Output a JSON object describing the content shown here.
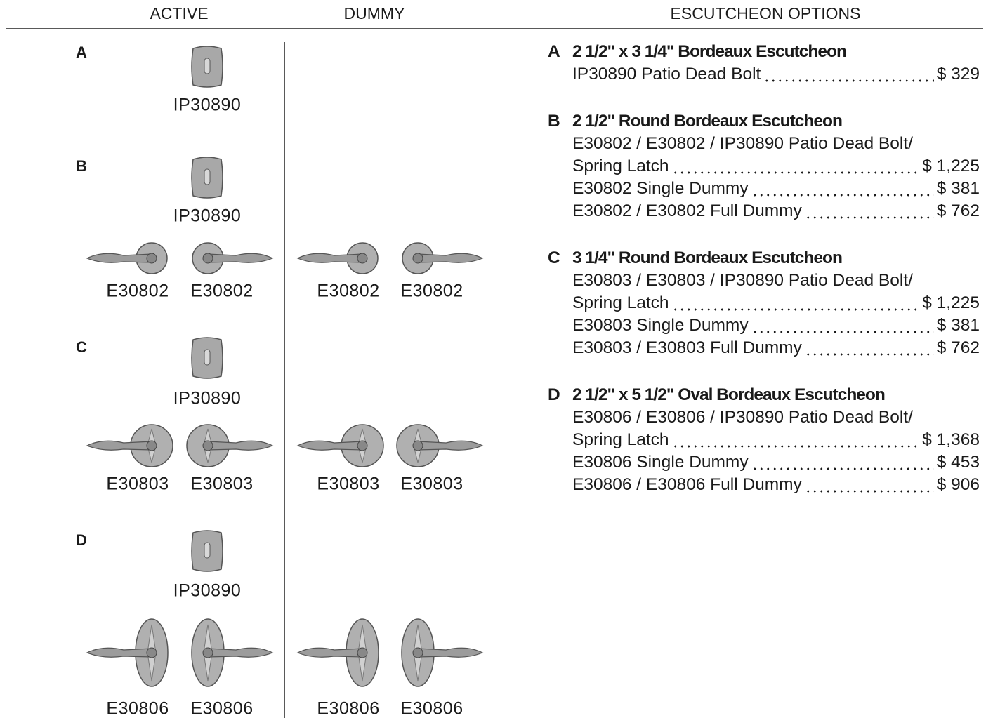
{
  "headers": {
    "active": "ACTIVE",
    "dummy": "DUMMY",
    "options": "ESCUTCHEON OPTIONS"
  },
  "sections": [
    {
      "letter": "A",
      "deadbolt": "IP30890",
      "active": [],
      "dummy": []
    },
    {
      "letter": "B",
      "deadbolt": "IP30890",
      "active": [
        "E30802",
        "E30802"
      ],
      "dummy": [
        "E30802",
        "E30802"
      ]
    },
    {
      "letter": "C",
      "deadbolt": "IP30890",
      "active": [
        "E30803",
        "E30803"
      ],
      "dummy": [
        "E30803",
        "E30803"
      ]
    },
    {
      "letter": "D",
      "deadbolt": "IP30890",
      "active": [
        "E30806",
        "E30806"
      ],
      "dummy": [
        "E30806",
        "E30806"
      ]
    }
  ],
  "options": [
    {
      "letter": "A",
      "title": "2 1/2\" x 3 1/4\" Bordeaux Escutcheon",
      "items": [
        {
          "lines": [
            "IP30890 Patio Dead Bolt"
          ],
          "price": "$ 329"
        }
      ]
    },
    {
      "letter": "B",
      "title": "2 1/2\" Round Bordeaux Escutcheon",
      "items": [
        {
          "lines": [
            "E30802 / E30802 / IP30890 Patio Dead Bolt/",
            "Spring Latch"
          ],
          "price": "$ 1,225"
        },
        {
          "lines": [
            "E30802 Single Dummy"
          ],
          "price": "$ 381"
        },
        {
          "lines": [
            "E30802 / E30802 Full Dummy"
          ],
          "price": "$ 762"
        }
      ]
    },
    {
      "letter": "C",
      "title": "3 1/4\" Round Bordeaux Escutcheon",
      "items": [
        {
          "lines": [
            "E30803 / E30803 / IP30890 Patio Dead Bolt/",
            "Spring Latch"
          ],
          "price": "$ 1,225"
        },
        {
          "lines": [
            "E30803 Single Dummy"
          ],
          "price": "$ 381"
        },
        {
          "lines": [
            "E30803 / E30803 Full Dummy"
          ],
          "price": "$ 762"
        }
      ]
    },
    {
      "letter": "D",
      "title": "2 1/2\" x 5 1/2\" Oval Bordeaux Escutcheon",
      "items": [
        {
          "lines": [
            "E30806 / E30806 / IP30890 Patio Dead Bolt/",
            "Spring Latch"
          ],
          "price": "$ 1,368"
        },
        {
          "lines": [
            "E30806 Single Dummy"
          ],
          "price": "$ 453"
        },
        {
          "lines": [
            "E30806 / E30806 Full Dummy"
          ],
          "price": "$ 906"
        }
      ]
    }
  ]
}
